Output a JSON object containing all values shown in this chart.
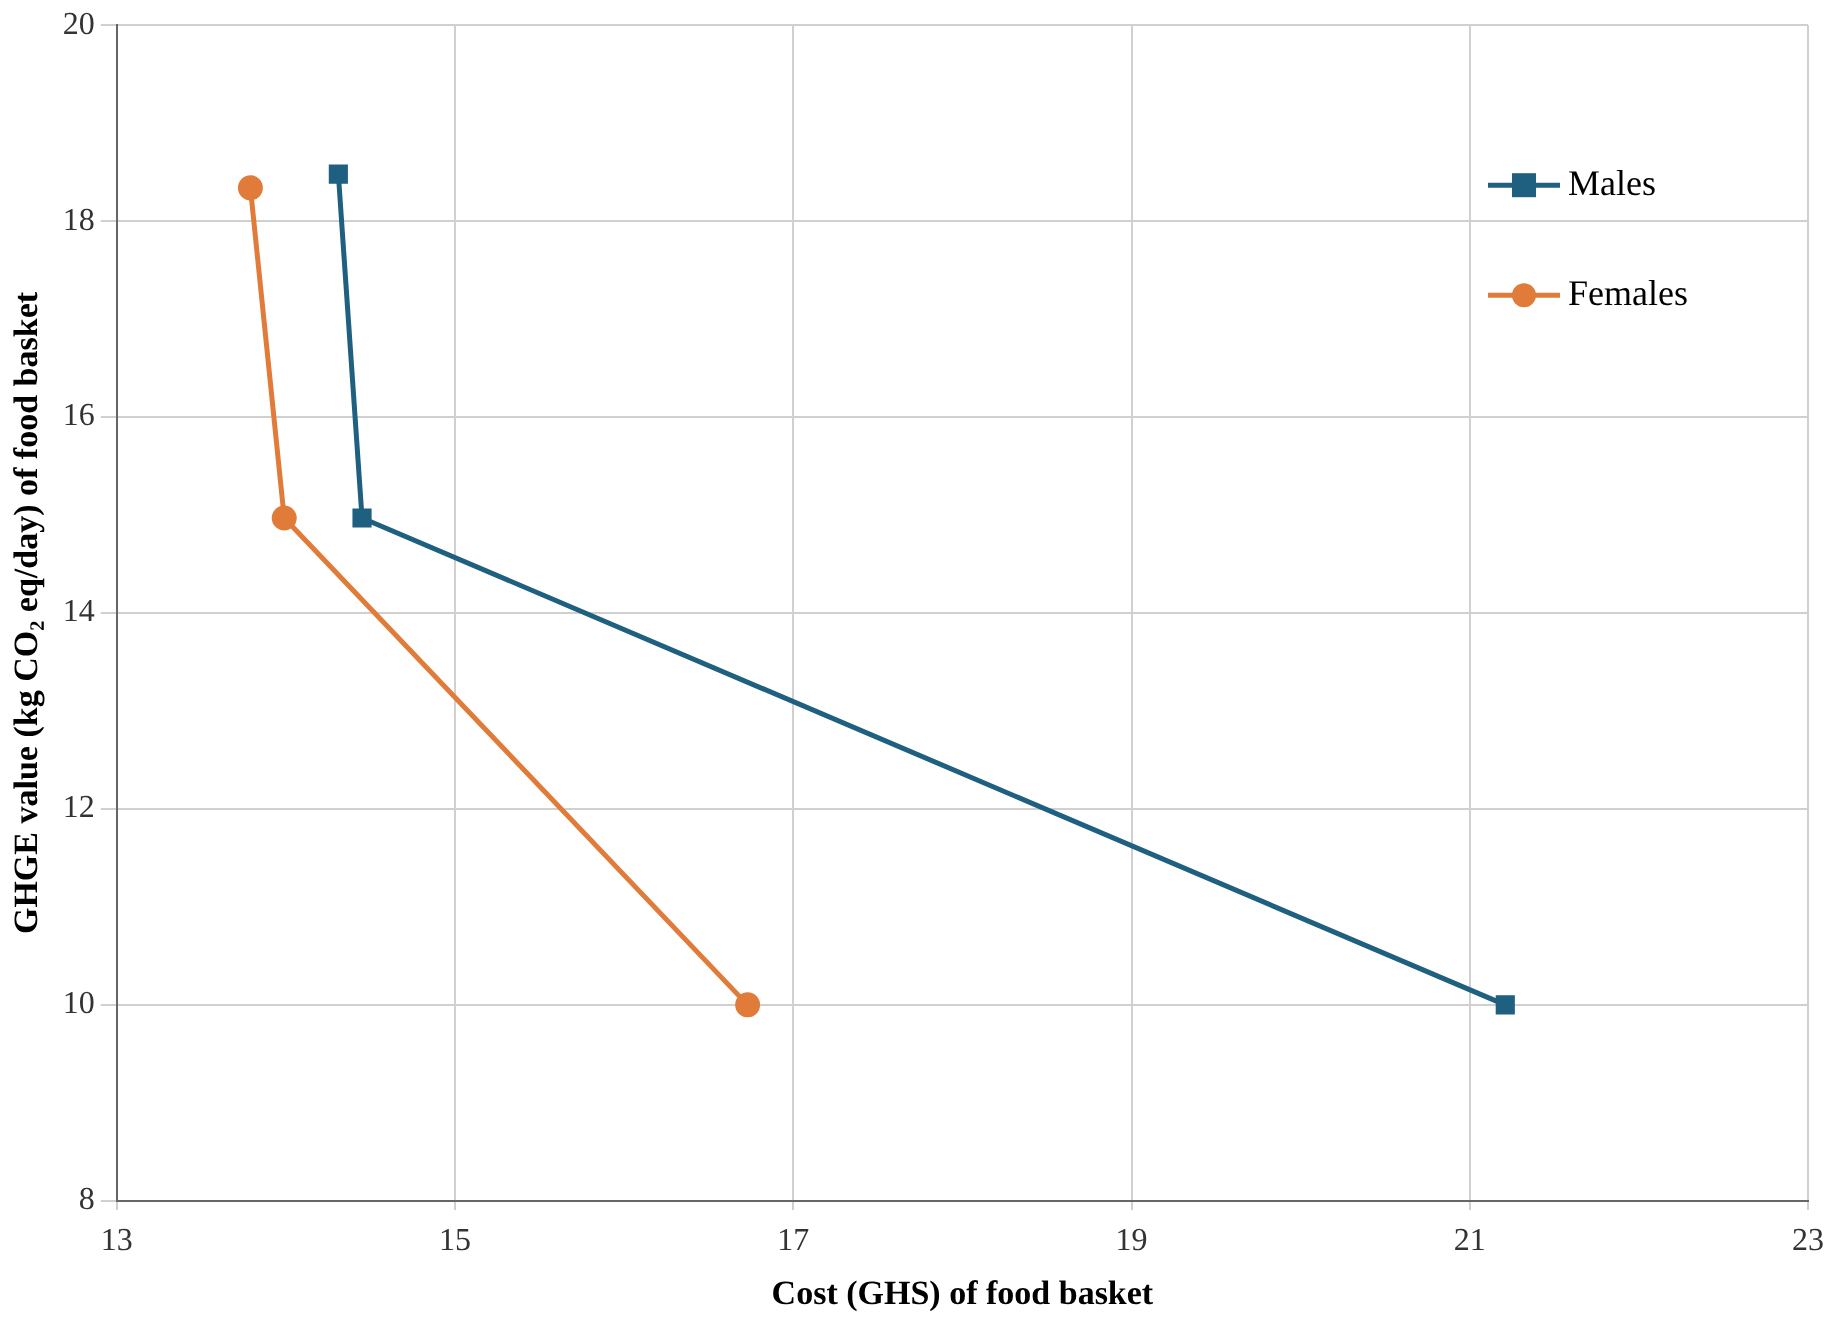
{
  "chart_data": {
    "type": "line",
    "xlabel": "Cost (GHS) of food basket",
    "ylabel": "GHGE value (kg CO₂ eq/day) of food basket",
    "xlim": [
      13,
      23
    ],
    "xticks": [
      13,
      15,
      17,
      19,
      21,
      23
    ],
    "ylim": [
      8,
      20
    ],
    "yticks": [
      8,
      10,
      12,
      14,
      16,
      18,
      20
    ],
    "grid": true,
    "legend": "top right",
    "series": [
      {
        "name": "Males",
        "color": "#1f5f7f",
        "marker": "square",
        "x": [
          14.31,
          14.45,
          21.21
        ],
        "values": [
          18.48,
          14.97,
          10
        ]
      },
      {
        "name": "Females",
        "color": "#e07b39",
        "marker": "circle",
        "x": [
          13.79,
          13.99,
          16.73
        ],
        "values": [
          18.34,
          14.97,
          10
        ]
      }
    ]
  }
}
